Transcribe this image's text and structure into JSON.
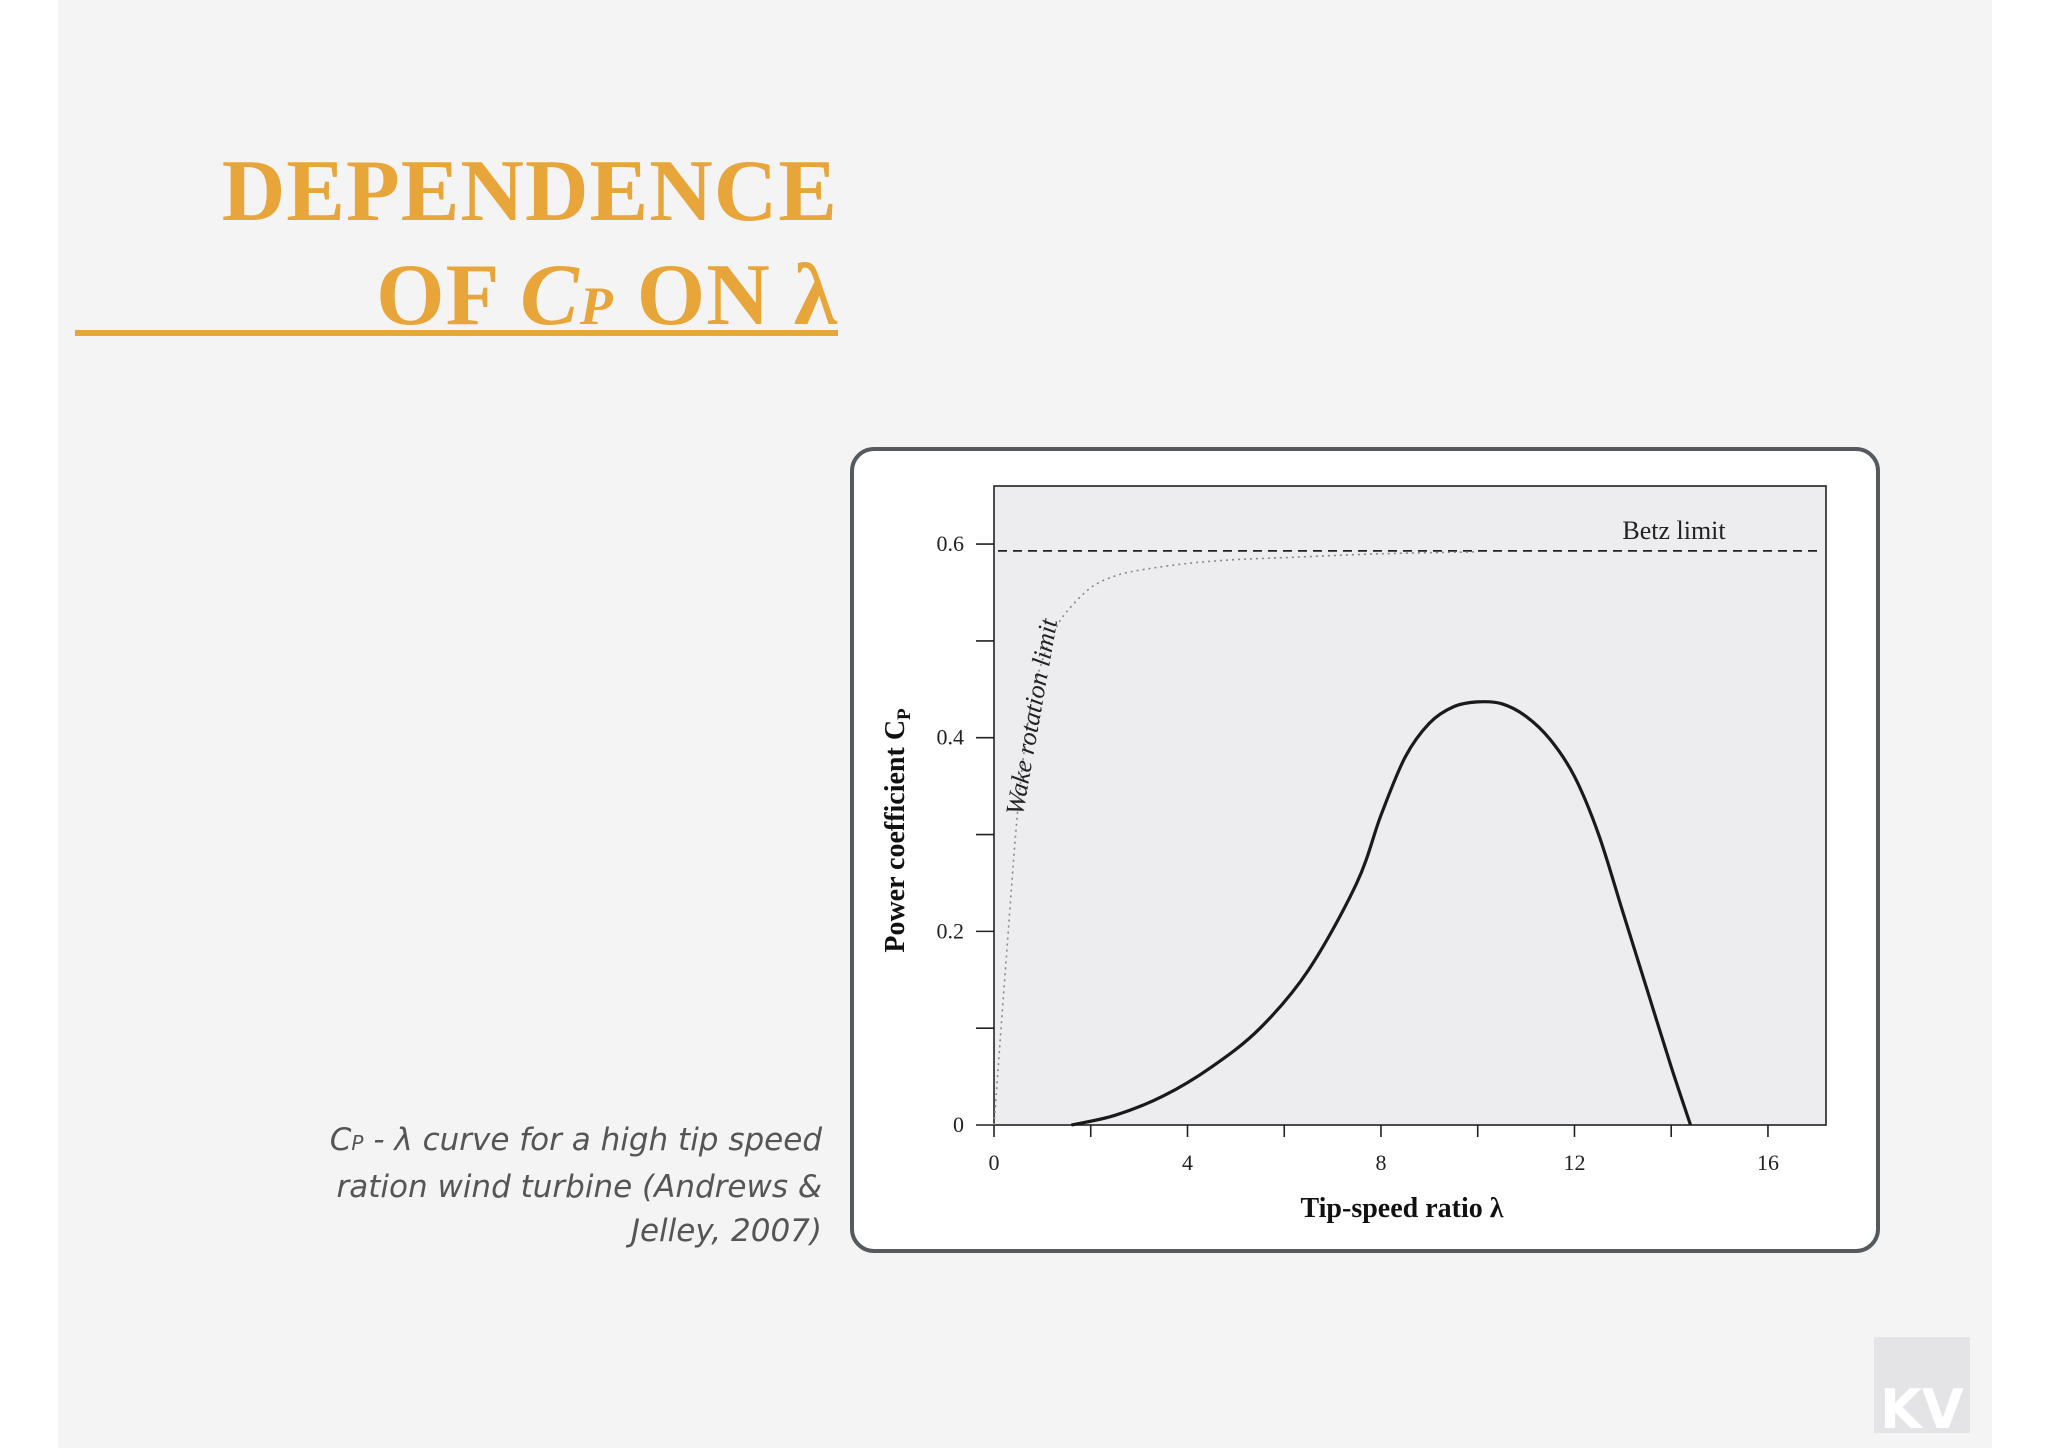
{
  "slide": {
    "title_line1": "DEPENDENCE",
    "title_line2_prefix": "OF ",
    "title_symbol": "C",
    "title_subscript": "P",
    "title_line2_suffix": " ON λ",
    "caption_symbol": "C",
    "caption_subscript": "P",
    "caption_rest": " - λ curve for a high tip speed ration wind turbine (Andrews & Jelley, 2007)",
    "logo_text": "KV"
  },
  "colors": {
    "accent": "#e8a63a",
    "plot_background": "#ededf0",
    "curve": "#1a1a1a",
    "frame": "#555a5e"
  },
  "chart_data": {
    "type": "line",
    "xlabel": "Tip-speed ratio λ",
    "ylabel": "Power coefficient C",
    "ylabel_subscript": "P",
    "xlim": [
      0,
      17.2
    ],
    "ylim": [
      0,
      0.66
    ],
    "x_ticks": [
      0,
      2,
      4,
      6,
      8,
      10,
      12,
      14,
      16
    ],
    "x_tick_labels": [
      "0",
      "",
      "4",
      "",
      "8",
      "",
      "12",
      "",
      "16"
    ],
    "y_ticks": [
      0,
      0.1,
      0.2,
      0.3,
      0.4,
      0.5,
      0.6
    ],
    "y_tick_labels": [
      "0",
      "",
      "0.2",
      "",
      "0.4",
      "",
      "0.6"
    ],
    "betz_limit": {
      "label": "Betz limit",
      "y": 0.593
    },
    "series": [
      {
        "label": "Wake rotation limit",
        "style": "dotted",
        "x": [
          0,
          0.25,
          0.5,
          0.75,
          1.0,
          1.25,
          1.5,
          2.0,
          2.5,
          3.0,
          4.0,
          5.0,
          6.0,
          8.0,
          10.0
        ],
        "y": [
          0.0,
          0.17,
          0.33,
          0.43,
          0.48,
          0.51,
          0.53,
          0.555,
          0.567,
          0.573,
          0.58,
          0.584,
          0.586,
          0.59,
          0.592
        ]
      },
      {
        "label": "",
        "style": "solid",
        "x": [
          1.6,
          2.5,
          3.5,
          4.5,
          5.5,
          6.5,
          7.5,
          8.0,
          8.5,
          9.0,
          9.5,
          10.0,
          10.5,
          11.0,
          11.5,
          12.0,
          12.5,
          13.0,
          13.5,
          14.0,
          14.4
        ],
        "y": [
          0.0,
          0.01,
          0.03,
          0.06,
          0.1,
          0.16,
          0.25,
          0.32,
          0.38,
          0.415,
          0.432,
          0.437,
          0.435,
          0.422,
          0.398,
          0.36,
          0.3,
          0.22,
          0.14,
          0.06,
          0.0
        ]
      }
    ]
  }
}
